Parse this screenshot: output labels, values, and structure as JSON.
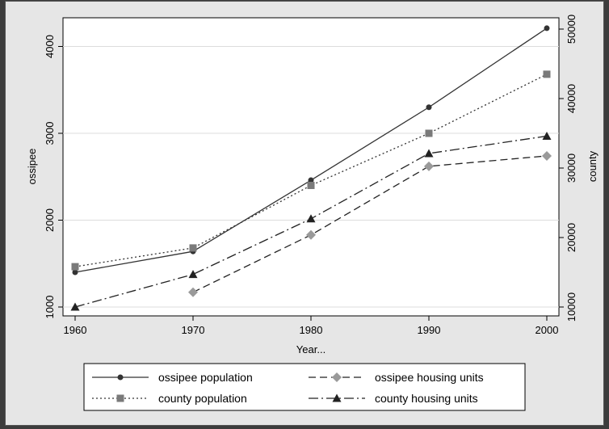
{
  "chart_data": {
    "type": "line",
    "xlabel": "Year...",
    "ylabel_left": "ossipee",
    "ylabel_right": "county",
    "x": [
      1960,
      1970,
      1980,
      1990,
      2000
    ],
    "x_ticks": [
      "1960",
      "1970",
      "1980",
      "1990",
      "2000"
    ],
    "xlim": [
      1960,
      2000
    ],
    "ylim_left": [
      1000,
      4200
    ],
    "ylim_right": [
      10000,
      50000
    ],
    "left_ticks": [
      "1000",
      "2000",
      "3000",
      "4000"
    ],
    "right_ticks": [
      "10000",
      "20000",
      "30000",
      "40000",
      "50000"
    ],
    "grid": true,
    "legend_placement": "bottom",
    "series": [
      {
        "name": "ossipee population",
        "axis": "left",
        "color": "#333333",
        "marker": "circle",
        "dash": "solid",
        "values": [
          1400,
          1640,
          2460,
          3300,
          4210
        ]
      },
      {
        "name": "ossipee housing units",
        "axis": "left",
        "color": "#222222",
        "marker": "diamond",
        "marker_color": "#9a9a9a",
        "dash": "dash",
        "values": [
          null,
          1170,
          1830,
          2620,
          2740
        ]
      },
      {
        "name": "county population",
        "axis": "right",
        "color": "#333333",
        "marker": "square",
        "marker_color": "#7a7a7a",
        "dash": "dot",
        "values": [
          15800,
          18500,
          27500,
          35000,
          43500
        ]
      },
      {
        "name": "county housing units",
        "axis": "right",
        "color": "#222222",
        "marker": "triangle",
        "dash": "dashdot",
        "values": [
          10000,
          14700,
          22700,
          32100,
          34600
        ]
      }
    ]
  }
}
